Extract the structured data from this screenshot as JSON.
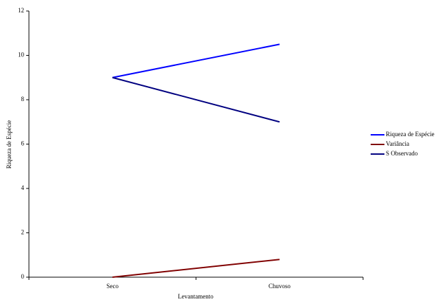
{
  "chart_data": {
    "type": "line",
    "categories": [
      "Seco",
      "Chuvoso"
    ],
    "series": [
      {
        "name": "Riqueza de Espécie",
        "color": "#0000ff",
        "values": [
          9,
          10.5
        ]
      },
      {
        "name": "Variância",
        "color": "#800000",
        "values": [
          0,
          0.8
        ]
      },
      {
        "name": "S Observado",
        "color": "#000080",
        "values": [
          9,
          7
        ]
      }
    ],
    "xlabel": "Levantamento",
    "ylabel": "Riqueza de Espécie",
    "ylim": [
      0,
      12
    ],
    "yticks": [
      0,
      2,
      4,
      6,
      8,
      10,
      12
    ],
    "legend": "right"
  }
}
